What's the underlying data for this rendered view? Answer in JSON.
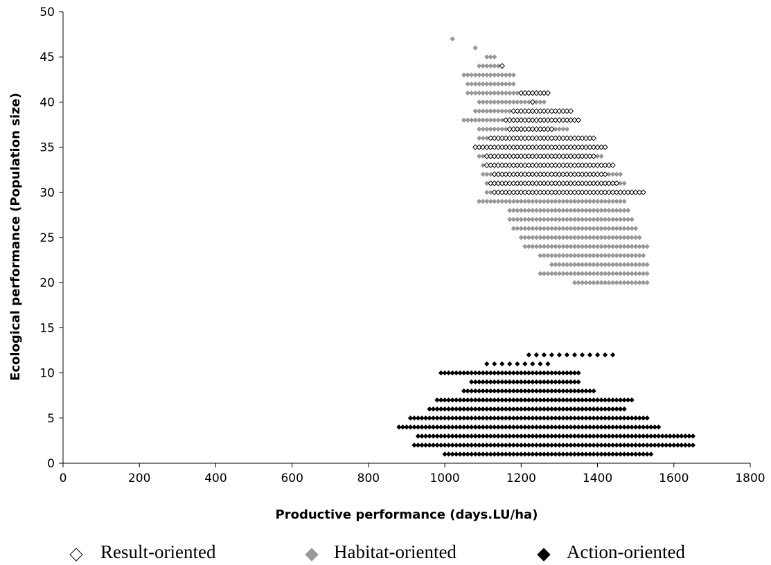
{
  "chart_data": {
    "type": "scatter",
    "title": "",
    "xlabel": "Productive performance (days.LU/ha)",
    "ylabel": "Ecological performance (Population size)",
    "xlim": [
      0,
      1800
    ],
    "ylim": [
      0,
      50
    ],
    "xticks": [
      "0",
      "200",
      "400",
      "600",
      "800",
      "1000",
      "1200",
      "1400",
      "1600",
      "1800"
    ],
    "yticks": [
      "0",
      "5",
      "10",
      "15",
      "20",
      "25",
      "30",
      "35",
      "40",
      "45",
      "50"
    ],
    "grid": false,
    "legend_position": "bottom",
    "series": [
      {
        "name": "Result-oriented",
        "marker": "open-diamond",
        "color": "#000000",
        "rows": [
          {
            "y": 44,
            "x_start": 1150,
            "x_end": 1150,
            "step": 20
          },
          {
            "y": 41,
            "x_start": 1200,
            "x_end": 1270,
            "step": 10
          },
          {
            "y": 40,
            "x_start": 1230,
            "x_end": 1230,
            "step": 10
          },
          {
            "y": 39,
            "x_start": 1180,
            "x_end": 1330,
            "step": 10
          },
          {
            "y": 38,
            "x_start": 1160,
            "x_end": 1350,
            "step": 10
          },
          {
            "y": 37,
            "x_start": 1170,
            "x_end": 1280,
            "step": 10
          },
          {
            "y": 36,
            "x_start": 1120,
            "x_end": 1390,
            "step": 10
          },
          {
            "y": 35,
            "x_start": 1080,
            "x_end": 1420,
            "step": 10
          },
          {
            "y": 34,
            "x_start": 1110,
            "x_end": 1390,
            "step": 10
          },
          {
            "y": 33,
            "x_start": 1110,
            "x_end": 1440,
            "step": 10
          },
          {
            "y": 32,
            "x_start": 1130,
            "x_end": 1420,
            "step": 10
          },
          {
            "y": 31,
            "x_start": 1120,
            "x_end": 1450,
            "step": 10
          },
          {
            "y": 30,
            "x_start": 1130,
            "x_end": 1520,
            "step": 10
          }
        ]
      },
      {
        "name": "Habitat-oriented",
        "marker": "filled-diamond",
        "color": "#999999",
        "rows": [
          {
            "y": 47,
            "x_start": 1020,
            "x_end": 1020,
            "step": 20
          },
          {
            "y": 46,
            "x_start": 1080,
            "x_end": 1080,
            "step": 20
          },
          {
            "y": 45,
            "x_start": 1110,
            "x_end": 1130,
            "step": 10
          },
          {
            "y": 44,
            "x_start": 1090,
            "x_end": 1140,
            "step": 10
          },
          {
            "y": 43,
            "x_start": 1050,
            "x_end": 1180,
            "step": 10
          },
          {
            "y": 42,
            "x_start": 1060,
            "x_end": 1180,
            "step": 10
          },
          {
            "y": 41,
            "x_start": 1060,
            "x_end": 1260,
            "step": 10
          },
          {
            "y": 40,
            "x_start": 1090,
            "x_end": 1260,
            "step": 10
          },
          {
            "y": 39,
            "x_start": 1080,
            "x_end": 1300,
            "step": 10
          },
          {
            "y": 38,
            "x_start": 1050,
            "x_end": 1320,
            "step": 10
          },
          {
            "y": 37,
            "x_start": 1090,
            "x_end": 1320,
            "step": 10
          },
          {
            "y": 36,
            "x_start": 1090,
            "x_end": 1380,
            "step": 10
          },
          {
            "y": 35,
            "x_start": 1090,
            "x_end": 1400,
            "step": 10
          },
          {
            "y": 34,
            "x_start": 1090,
            "x_end": 1410,
            "step": 10
          },
          {
            "y": 33,
            "x_start": 1100,
            "x_end": 1430,
            "step": 10
          },
          {
            "y": 32,
            "x_start": 1100,
            "x_end": 1460,
            "step": 10
          },
          {
            "y": 31,
            "x_start": 1110,
            "x_end": 1470,
            "step": 10
          },
          {
            "y": 30,
            "x_start": 1110,
            "x_end": 1490,
            "step": 10
          },
          {
            "y": 29,
            "x_start": 1090,
            "x_end": 1470,
            "step": 10
          },
          {
            "y": 28,
            "x_start": 1170,
            "x_end": 1480,
            "step": 10
          },
          {
            "y": 27,
            "x_start": 1170,
            "x_end": 1490,
            "step": 10
          },
          {
            "y": 26,
            "x_start": 1180,
            "x_end": 1500,
            "step": 10
          },
          {
            "y": 25,
            "x_start": 1200,
            "x_end": 1510,
            "step": 10
          },
          {
            "y": 24,
            "x_start": 1210,
            "x_end": 1530,
            "step": 10
          },
          {
            "y": 23,
            "x_start": 1250,
            "x_end": 1520,
            "step": 10
          },
          {
            "y": 22,
            "x_start": 1280,
            "x_end": 1530,
            "step": 10
          },
          {
            "y": 21,
            "x_start": 1250,
            "x_end": 1530,
            "step": 10
          },
          {
            "y": 20,
            "x_start": 1340,
            "x_end": 1530,
            "step": 10
          }
        ]
      },
      {
        "name": "Action-oriented",
        "marker": "filled-diamond",
        "color": "#000000",
        "rows": [
          {
            "y": 12,
            "x_start": 1220,
            "x_end": 1440,
            "step": 20
          },
          {
            "y": 11,
            "x_start": 1110,
            "x_end": 1270,
            "step": 20
          },
          {
            "y": 10,
            "x_start": 990,
            "x_end": 1350,
            "step": 10
          },
          {
            "y": 9,
            "x_start": 1070,
            "x_end": 1350,
            "step": 10
          },
          {
            "y": 8,
            "x_start": 1050,
            "x_end": 1390,
            "step": 10
          },
          {
            "y": 7,
            "x_start": 980,
            "x_end": 1490,
            "step": 10
          },
          {
            "y": 6,
            "x_start": 960,
            "x_end": 1470,
            "step": 10
          },
          {
            "y": 5,
            "x_start": 910,
            "x_end": 1530,
            "step": 10
          },
          {
            "y": 4,
            "x_start": 880,
            "x_end": 1560,
            "step": 10
          },
          {
            "y": 3,
            "x_start": 930,
            "x_end": 1650,
            "step": 10
          },
          {
            "y": 2,
            "x_start": 920,
            "x_end": 1650,
            "step": 10
          },
          {
            "y": 1,
            "x_start": 1000,
            "x_end": 1540,
            "step": 10
          }
        ]
      }
    ]
  }
}
